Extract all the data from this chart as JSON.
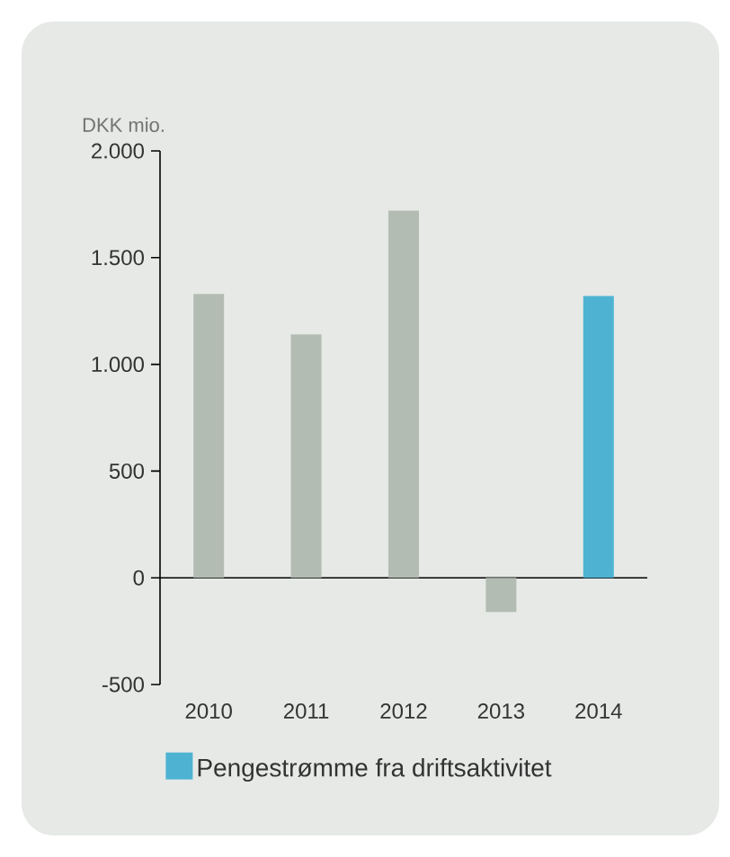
{
  "chart_data": {
    "type": "bar",
    "ylabel": "DKK mio.",
    "categories": [
      "2010",
      "2011",
      "2012",
      "2013",
      "2014"
    ],
    "series": [
      {
        "color": "#b3bcb3",
        "values": [
          1330,
          1140,
          1720,
          -160,
          null
        ]
      },
      {
        "name": "Pengestrømme fra driftsaktivitet",
        "color": "#4eb3d3",
        "values": [
          null,
          null,
          null,
          null,
          1320
        ]
      }
    ],
    "ylim": [
      -500,
      2000
    ],
    "yticks": [
      {
        "value": -500,
        "label": "-500"
      },
      {
        "value": 0,
        "label": "0"
      },
      {
        "value": 500,
        "label": "500"
      },
      {
        "value": 1000,
        "label": "1.000"
      },
      {
        "value": 1500,
        "label": "1.500"
      },
      {
        "value": 2000,
        "label": "2.000"
      }
    ],
    "legend": "bottom"
  }
}
